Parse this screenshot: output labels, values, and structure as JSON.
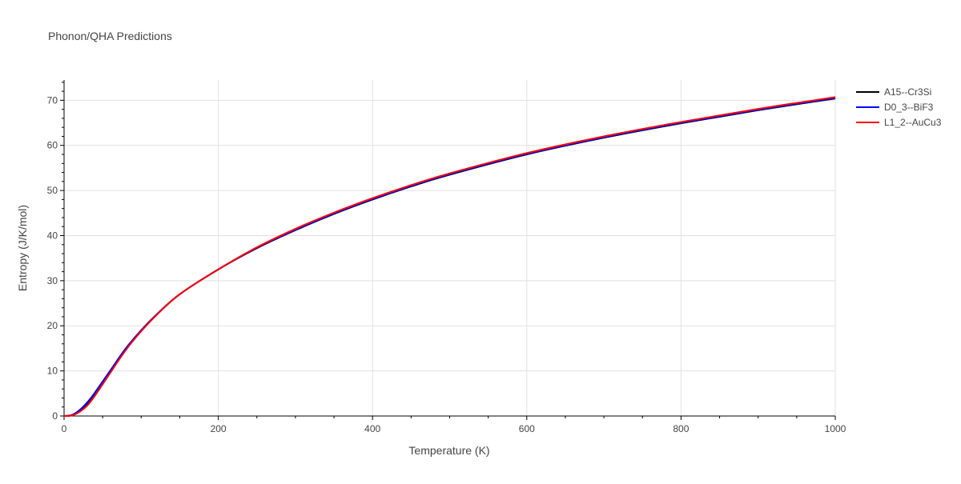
{
  "chart_data": {
    "type": "line",
    "title": "Phonon/QHA Predictions",
    "xlabel": "Temperature (K)",
    "ylabel": "Entropy (J/K/mol)",
    "xlim": [
      0,
      1000
    ],
    "ylim": [
      0,
      74.5
    ],
    "x_ticks": [
      0,
      200,
      400,
      600,
      800,
      1000
    ],
    "y_ticks": [
      0,
      10,
      20,
      30,
      40,
      50,
      60,
      70
    ],
    "grid": true,
    "legend_position": "top-right",
    "x": [
      0,
      10,
      20,
      30,
      40,
      60,
      80,
      100,
      120,
      150,
      200,
      250,
      300,
      350,
      400,
      450,
      500,
      600,
      700,
      800,
      900,
      1000
    ],
    "series": [
      {
        "name": "A15--Cr3Si",
        "color": "#000000",
        "values": [
          0,
          0.2,
          1.2,
          2.8,
          5.0,
          10.0,
          14.9,
          19.0,
          22.5,
          27.0,
          32.5,
          37.2,
          41.2,
          44.8,
          48.0,
          50.9,
          53.5,
          58.0,
          61.7,
          64.9,
          67.8,
          70.4
        ]
      },
      {
        "name": "D0_3--BiF3",
        "color": "#0000ff",
        "values": [
          0,
          0.2,
          1.3,
          3.0,
          5.2,
          10.1,
          15.0,
          19.0,
          22.5,
          27.0,
          32.5,
          37.3,
          41.3,
          44.9,
          48.1,
          51.0,
          53.6,
          58.1,
          61.8,
          65.0,
          67.9,
          70.5
        ]
      },
      {
        "name": "L1_2--AuCu3",
        "color": "#ff0000",
        "values": [
          0,
          0.1,
          0.9,
          2.3,
          4.5,
          9.6,
          14.6,
          18.8,
          22.4,
          27.0,
          32.5,
          37.4,
          41.5,
          45.1,
          48.3,
          51.2,
          53.8,
          58.3,
          62.0,
          65.2,
          68.1,
          70.7
        ]
      }
    ]
  }
}
